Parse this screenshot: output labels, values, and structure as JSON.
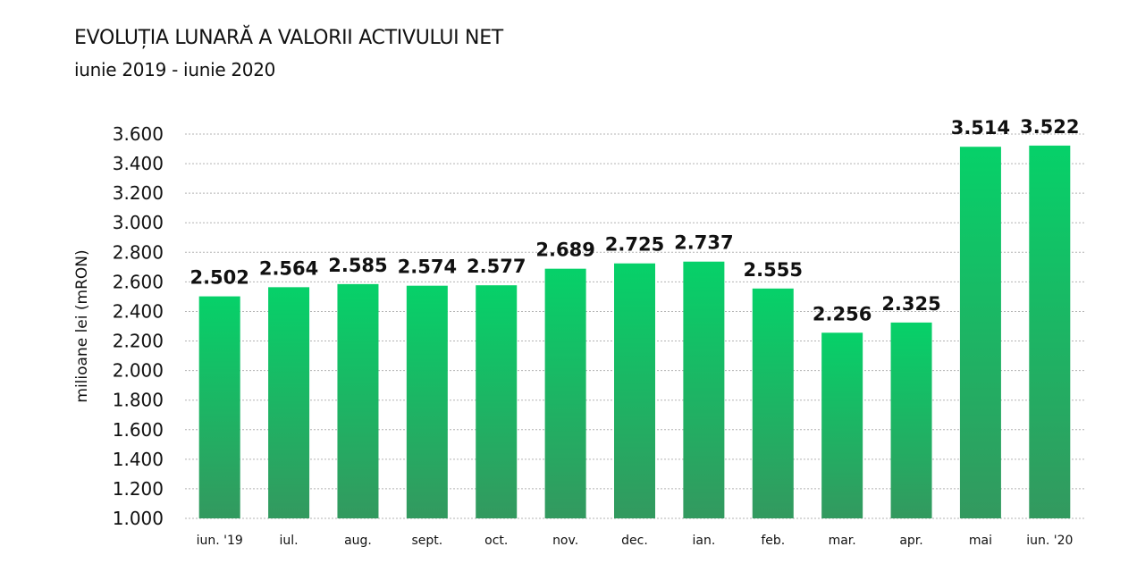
{
  "chart_data": {
    "type": "bar",
    "title": "EVOLUȚIA LUNARĂ A VALORII ACTIVULUI NET",
    "subtitle": "iunie 2019 - iunie 2020",
    "xlabel": "",
    "ylabel": "milioane lei (mRON)",
    "ylim": [
      1000,
      3600
    ],
    "yticks": [
      1000,
      1200,
      1400,
      1600,
      1800,
      2000,
      2200,
      2400,
      2600,
      2800,
      3000,
      3200,
      3400,
      3600
    ],
    "ytick_labels": [
      "1.000",
      "1.200",
      "1.400",
      "1.600",
      "1.800",
      "2.000",
      "2.200",
      "2.400",
      "2.600",
      "2.800",
      "3.000",
      "3.200",
      "3.400",
      "3.600"
    ],
    "categories": [
      "iun. '19",
      "iul.",
      "aug.",
      "sept.",
      "oct.",
      "nov.",
      "dec.",
      "ian.",
      "feb.",
      "mar.",
      "apr.",
      "mai",
      "iun. '20"
    ],
    "values": [
      2502,
      2564,
      2585,
      2574,
      2577,
      2689,
      2725,
      2737,
      2555,
      2256,
      2325,
      3514,
      3522
    ],
    "value_labels": [
      "2.502",
      "2.564",
      "2.585",
      "2.574",
      "2.577",
      "2.689",
      "2.725",
      "2.737",
      "2.555",
      "2.256",
      "2.325",
      "3.514",
      "3.522"
    ],
    "grid": true,
    "legend": "none",
    "colors": {
      "bar_top": "#06d169",
      "bar_bottom": "#33995f",
      "grid": "#b3b3b3",
      "text": "#111111"
    }
  }
}
